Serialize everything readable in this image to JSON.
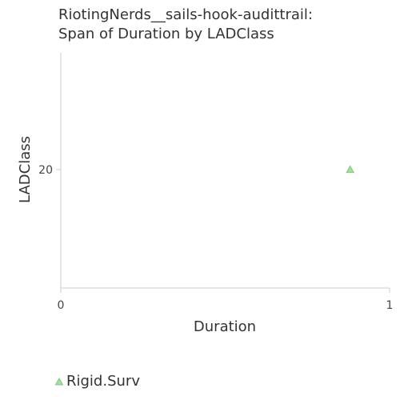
{
  "chart_data": {
    "type": "scatter",
    "title_lines": [
      "RiotingNerds__sails-hook-audittrail:",
      "Span of Duration by LADClass"
    ],
    "xlabel": "Duration",
    "ylabel": "LADClass",
    "xlim": [
      0,
      1
    ],
    "x_ticks": [
      "0",
      "1"
    ],
    "y_ticks": [
      "20"
    ],
    "y_tick_values": [
      20
    ],
    "ylim": [
      10,
      30
    ],
    "grid": false,
    "legend_position": "bottom-left",
    "series": [
      {
        "name": "Rigid.Surv",
        "marker": "triangle",
        "color": "#a6dba0",
        "stroke": "#7fc97f",
        "points": [
          {
            "x": 0.88,
            "y": 20
          }
        ]
      }
    ]
  }
}
